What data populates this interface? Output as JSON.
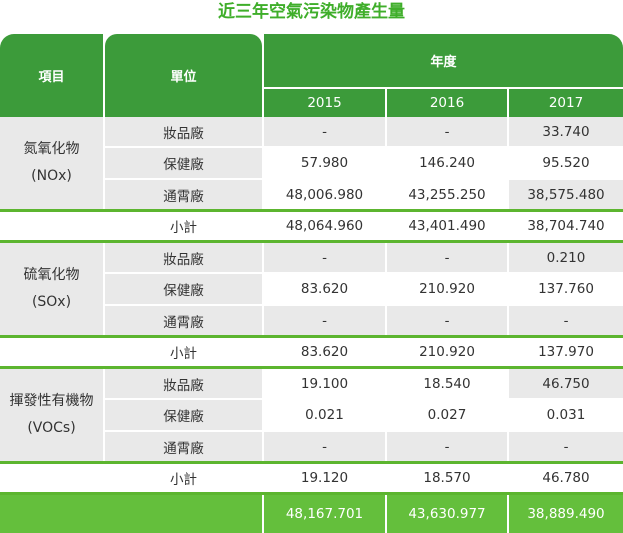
{
  "title": "近三年空氣污染物產生量",
  "headers": {
    "item": "項目",
    "unit": "單位",
    "year": "年度",
    "years": [
      "2015",
      "2016",
      "2017"
    ]
  },
  "groups": [
    {
      "name": "氮氧化物",
      "code": "(NOx)",
      "rows": [
        {
          "unit": "妝品廠",
          "values": [
            "-",
            "-",
            "33.740"
          ]
        },
        {
          "unit": "保健廠",
          "values": [
            "57.980",
            "146.240",
            "95.520"
          ]
        },
        {
          "unit": "通霄廠",
          "values": [
            "48,006.980",
            "43,255.250",
            "38,575.480"
          ]
        }
      ],
      "subtotal_label": "小計",
      "subtotal": [
        "48,064.960",
        "43,401.490",
        "38,704.740"
      ]
    },
    {
      "name": "硫氧化物",
      "code": "(SOx)",
      "rows": [
        {
          "unit": "妝品廠",
          "values": [
            "-",
            "-",
            "0.210"
          ]
        },
        {
          "unit": "保健廠",
          "values": [
            "83.620",
            "210.920",
            "137.760"
          ]
        },
        {
          "unit": "通霄廠",
          "values": [
            "-",
            "-",
            "-"
          ]
        }
      ],
      "subtotal_label": "小計",
      "subtotal": [
        "83.620",
        "210.920",
        "137.970"
      ]
    },
    {
      "name": "揮發性有機物",
      "code": "(VOCs)",
      "rows": [
        {
          "unit": "妝品廠",
          "values": [
            "19.100",
            "18.540",
            "46.750"
          ]
        },
        {
          "unit": "保健廠",
          "values": [
            "0.021",
            "0.027",
            "0.031"
          ]
        },
        {
          "unit": "通霄廠",
          "values": [
            "-",
            "-",
            "-"
          ]
        }
      ],
      "subtotal_label": "小計",
      "subtotal": [
        "19.120",
        "18.570",
        "46.780"
      ]
    }
  ],
  "grand_total": [
    "48,167.701",
    "43,630.977",
    "38,889.490"
  ],
  "colors": {
    "header_green": "#3c9b3a",
    "total_green": "#64bf3c",
    "line_green": "#5cb52f",
    "title_green": "#3fae2a",
    "cell_grey": "#e9e9e9"
  },
  "chart_data": {
    "type": "table",
    "title": "近三年空氣污染物產生量",
    "columns": [
      "項目",
      "單位",
      "2015",
      "2016",
      "2017"
    ],
    "rows": [
      [
        "氮氧化物 (NOx)",
        "妝品廠",
        "-",
        "-",
        "33.740"
      ],
      [
        "氮氧化物 (NOx)",
        "保健廠",
        "57.980",
        "146.240",
        "95.520"
      ],
      [
        "氮氧化物 (NOx)",
        "通霄廠",
        "48,006.980",
        "43,255.250",
        "38,575.480"
      ],
      [
        "氮氧化物 (NOx)",
        "小計",
        "48,064.960",
        "43,401.490",
        "38,704.740"
      ],
      [
        "硫氧化物 (SOx)",
        "妝品廠",
        "-",
        "-",
        "0.210"
      ],
      [
        "硫氧化物 (SOx)",
        "保健廠",
        "83.620",
        "210.920",
        "137.760"
      ],
      [
        "硫氧化物 (SOx)",
        "通霄廠",
        "-",
        "-",
        "-"
      ],
      [
        "硫氧化物 (SOx)",
        "小計",
        "83.620",
        "210.920",
        "137.970"
      ],
      [
        "揮發性有機物 (VOCs)",
        "妝品廠",
        "19.100",
        "18.540",
        "46.750"
      ],
      [
        "揮發性有機物 (VOCs)",
        "保健廠",
        "0.021",
        "0.027",
        "0.031"
      ],
      [
        "揮發性有機物 (VOCs)",
        "通霄廠",
        "-",
        "-",
        "-"
      ],
      [
        "揮發性有機物 (VOCs)",
        "小計",
        "19.120",
        "18.570",
        "46.780"
      ],
      [
        "",
        "",
        "48,167.701",
        "43,630.977",
        "38,889.490"
      ]
    ]
  }
}
